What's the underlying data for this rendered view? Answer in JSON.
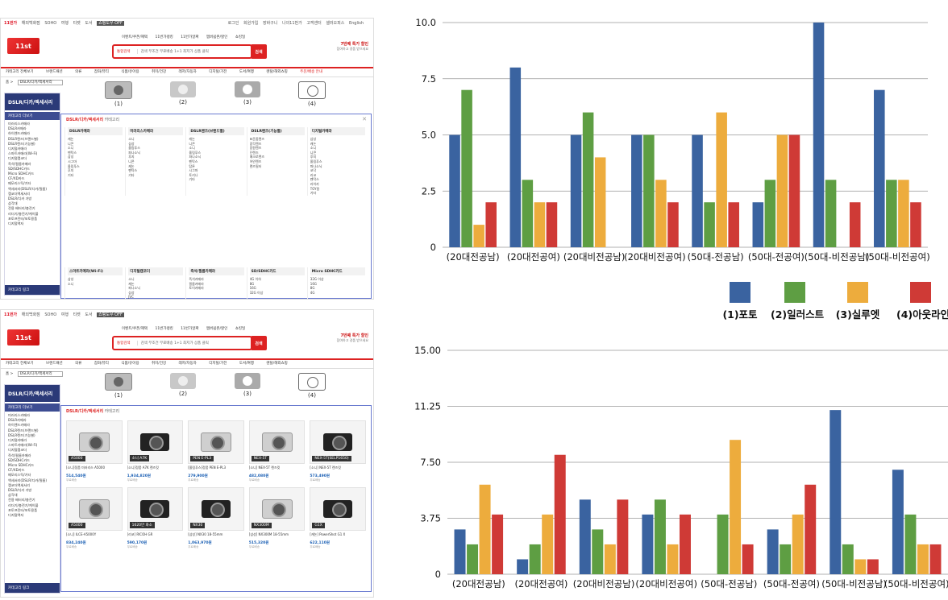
{
  "screens": {
    "top_bar": {
      "brand": "11번가",
      "links": [
        "해외백화점",
        "SOHO",
        "여행",
        "티켓",
        "도서"
      ],
      "toggle": "쇼핑도우 OFF",
      "right_links": [
        "로그인",
        "회원가입",
        "장바구니",
        "나의11번가",
        "고객센터",
        "셀러오피스",
        "English"
      ]
    },
    "gnb": [
      "이벤트/쿠폰/혜택",
      "11번가랭킹",
      "11번가알짜",
      "멤버쉽존/할인",
      "쇼킹딜"
    ],
    "search": {
      "category": "통합검색",
      "query": "검색 무조건 무료배송 1+1 최저가 상품 클릭",
      "button": "검색"
    },
    "promo": {
      "title": "7번째 특가 할인",
      "sub": "참여하고 경품 받으세요"
    },
    "category_bar": [
      "카테고리 전체보기",
      "브랜드패션",
      "의류",
      "잡화/뷰티",
      "식품/유아용",
      "취미/건강",
      "레저/자동차",
      "디지털/가전",
      "도서/여행",
      "렌탈/해외쇼핑",
      "주문/배송 안내"
    ],
    "crumb": {
      "home": "홈",
      "select": "DSLR/디카/액세서리"
    },
    "sidebar": {
      "title": "DSLR/디카/액세서리",
      "sub": "카테고리 더보기",
      "items": [
        "미러리스카메라",
        "DSLR카메라",
        "하이엔드카메라",
        "DSLR렌즈(브랜드별)",
        "DSLR렌즈(기능별)",
        "디지털카메라",
        "스마트카메라(Wi-Fi)",
        "디지털캠코더",
        "즉석/필름카메라",
        "SD/SDHC카드",
        "Micro SDHC카드",
        "CF/XD카드",
        "메모리스틱/기타",
        "액세서리(DSLR/디카/필름)",
        "캠코더액세서리",
        "DSLR/디카 가방",
        "삼각대",
        "전용 배터리/충전기",
        "리더기/충전기/케이블",
        "포토프린터/포토용품",
        "디지털액자"
      ],
      "footer": "카테고리 링크"
    },
    "dropdown": {
      "title_a": "DSLR/디카/액세서리",
      "title_b": "카테고리",
      "columns": [
        {
          "head": "DSLR카메라",
          "items": [
            "캐논",
            "니콘",
            "소니",
            "펜탁스",
            "삼성",
            "시그마",
            "올림푸스",
            "후지",
            "기타"
          ]
        },
        {
          "head": "미러리스카메라",
          "items": [
            "소니",
            "삼성",
            "올림푸스",
            "파나소닉",
            "후지",
            "니콘",
            "캐논",
            "펜탁스",
            "기타"
          ]
        },
        {
          "head": "DSLR렌즈(브랜드별)",
          "items": [
            "캐논",
            "니콘",
            "소니",
            "올림푸스",
            "파나소닉",
            "펜탁스",
            "탐론",
            "시그마",
            "토키나",
            "기타"
          ]
        },
        {
          "head": "DSLR렌즈(기능별)",
          "items": [
            "표준줌렌즈",
            "광각렌즈",
            "망원렌즈",
            "단렌즈",
            "매크로렌즈",
            "어안렌즈",
            "렌즈필터"
          ]
        },
        {
          "head": "디지털카메라",
          "items": [
            "삼성",
            "캐논",
            "소니",
            "니콘",
            "후지",
            "올림푸스",
            "파나소닉",
            "코닥",
            "리코",
            "펜탁스",
            "라이카",
            "TOY용",
            "기타"
          ]
        }
      ],
      "columns2": [
        {
          "head": "스마트카메라(Wi-Fi)",
          "items": [
            "삼성",
            "소니"
          ]
        },
        {
          "head": "디지털캠코더",
          "items": [
            "소니",
            "캐논",
            "파나소닉",
            "삼성",
            "JVC"
          ]
        },
        {
          "head": "즉석/필름카메라",
          "items": [
            "즉석카메라",
            "필름카메라",
            "토이카메라"
          ]
        },
        {
          "head": "SD/SDHC카드",
          "items": [
            "4G 이하",
            "8G",
            "16G",
            "32G 이상"
          ]
        },
        {
          "head": "Micro SDHC카드",
          "items": [
            "32G 이상",
            "16G",
            "8G",
            "4G"
          ]
        }
      ]
    },
    "products": [
      {
        "tag": "A5000",
        "name": "[소니]정품 미러리스 A5000",
        "price": "514,540원",
        "meta": "무료배송",
        "silver": true
      },
      {
        "tag": "소니 A7K",
        "name": "[소니]정품 A7K 렌즈킷",
        "price": "1,934,820원",
        "meta": "무료배송",
        "silver": false
      },
      {
        "tag": "PEN E-PL3",
        "name": "[올림푸스]정품 PEN E-PL3",
        "price": "279,900원",
        "meta": "무료배송",
        "silver": true
      },
      {
        "tag": "NEX-5T",
        "name": "[소니] NEX-5T 렌즈킷",
        "price": "482,080원",
        "meta": "무료배송",
        "silver": true
      },
      {
        "tag": "NEX-5T(SELP1650)",
        "name": "[소니] NEX-5T 렌즈킷",
        "price": "573,490원",
        "meta": "무료배송",
        "silver": false
      },
      {
        "tag": "A5000",
        "name": "[소니] ILCE-A5000Y",
        "price": "834,240원",
        "meta": "무료배송",
        "silver": true
      },
      {
        "tag": "1620만 화소",
        "name": "[리코] RICOH GR",
        "price": "590,170원",
        "meta": "무료배송",
        "silver": false
      },
      {
        "tag": "NX30",
        "name": "[삼성] NX30 18-55mm",
        "price": "1,063,970원",
        "meta": "무료배송",
        "silver": false
      },
      {
        "tag": "NX300M",
        "name": "[삼성] NX300M 18-55mm",
        "price": "515,320원",
        "meta": "무료배송",
        "silver": true
      },
      {
        "tag": "G1X",
        "name": "[캐논] PowerShot G1 X",
        "price": "622,110원",
        "meta": "무료배송",
        "silver": false
      }
    ],
    "camera_labels": [
      "(1)",
      "(2)",
      "(3)",
      "(4)"
    ]
  },
  "colors": {
    "photo": "#3a63a0",
    "illust": "#5e9e43",
    "silhouette": "#edac3d",
    "outline": "#cf3a36",
    "grid": "#999999"
  },
  "chart_data": [
    {
      "type": "bar",
      "categories": [
        "(20대전공남)",
        "(20대전공여)",
        "(20대비전공남)",
        "(20대비전공여)",
        "(50대-전공남)",
        "(50대-전공여)",
        "(50대-비전공남)",
        "(50대-비전공여)"
      ],
      "series": [
        {
          "name": "(1)포토",
          "values": [
            5,
            8,
            5,
            5,
            5,
            2,
            10,
            7
          ]
        },
        {
          "name": "(2)일러스트",
          "values": [
            7,
            3,
            6,
            5,
            2,
            3,
            3,
            3
          ]
        },
        {
          "name": "(3)실루엣",
          "values": [
            1,
            2,
            4,
            3,
            6,
            5,
            0,
            3
          ]
        },
        {
          "name": "(4)아웃라인",
          "values": [
            2,
            2,
            0,
            2,
            2,
            5,
            2,
            2
          ]
        }
      ],
      "yticks": [
        "0",
        "2.5",
        "5.0",
        "7.5",
        "10.0"
      ],
      "ylim": [
        0,
        10
      ],
      "grid": true,
      "legend": "bottom-right"
    },
    {
      "type": "bar",
      "categories": [
        "(20대전공남)",
        "(20대전공여)",
        "(20대비전공남)",
        "(20대비전공여)",
        "(50대-전공남)",
        "(50대-전공여)",
        "(50대-비전공남)",
        "(50대-비전공여)"
      ],
      "series": [
        {
          "name": "(1)포토",
          "values": [
            3,
            1,
            5,
            4,
            0,
            3,
            11,
            7
          ]
        },
        {
          "name": "(2)일러스트",
          "values": [
            2,
            2,
            3,
            5,
            4,
            2,
            2,
            4
          ]
        },
        {
          "name": "(3)실루엣",
          "values": [
            6,
            4,
            2,
            2,
            9,
            4,
            1,
            2
          ]
        },
        {
          "name": "(4)아웃라인",
          "values": [
            4,
            8,
            5,
            4,
            2,
            6,
            1,
            2
          ]
        }
      ],
      "yticks": [
        "0",
        "3.75",
        "7.50",
        "11.25",
        "15.00"
      ],
      "ylim": [
        0,
        15
      ],
      "grid": true
    }
  ]
}
